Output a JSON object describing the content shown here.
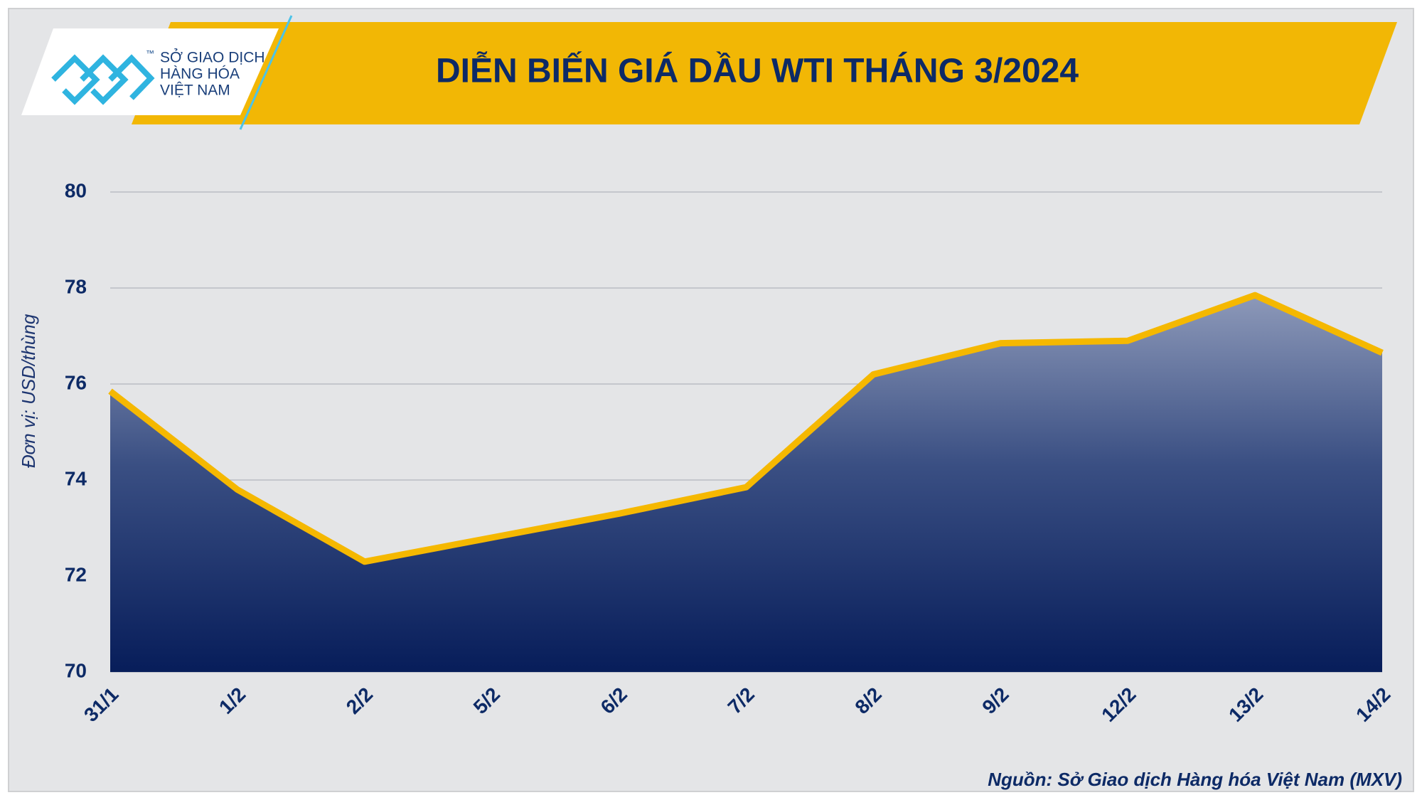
{
  "logo": {
    "line1": "SỞ GIAO DỊCH",
    "line2": "HÀNG HÓA",
    "line3": "VIỆT NAM",
    "mark": "™"
  },
  "chart_data": {
    "type": "area",
    "title": "DIỄN BIẾN GIÁ DẦU WTI THÁNG 3/2024",
    "y_label": "Đơn vị: USD/thùng",
    "source": "Nguồn: Sở Giao dịch Hàng hóa Việt Nam (MXV)",
    "categories": [
      "31/1",
      "1/2",
      "2/2",
      "5/2",
      "6/2",
      "7/2",
      "8/2",
      "9/2",
      "12/2",
      "13/2",
      "14/2"
    ],
    "values": [
      75.85,
      73.8,
      72.3,
      72.8,
      73.3,
      73.85,
      76.2,
      76.85,
      76.9,
      77.85,
      76.65
    ],
    "line_color": "#f5b800",
    "ylim": [
      70,
      80
    ],
    "yticks": [
      70,
      72,
      74,
      76,
      78,
      80
    ],
    "grid": true
  }
}
